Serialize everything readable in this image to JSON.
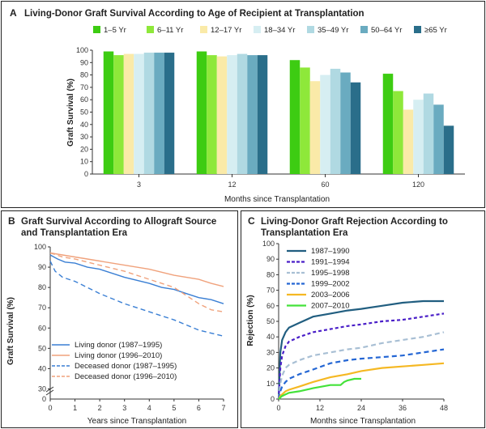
{
  "panel_a": {
    "letter": "A",
    "title": "Living-Donor Graft Survival According to Age of Recipient at Transplantation"
  },
  "panel_b": {
    "letter": "B",
    "title_line1": "Graft Survival According to Allograft Source",
    "title_line2": "and Transplantation Era"
  },
  "panel_c": {
    "letter": "C",
    "title_line1": "Living-Donor Graft Rejection According to",
    "title_line2": "Transplantation Era"
  },
  "colors": {
    "a": [
      "#3dcc12",
      "#8ee83a",
      "#faeaa8",
      "#d6eef2",
      "#b0d9e2",
      "#6aabc0",
      "#2a6e8a"
    ],
    "b": [
      "#3a7fd4",
      "#f0a27c",
      "#3a7fd4",
      "#f0a27c"
    ],
    "c": [
      "#215e80",
      "#4a1fc8",
      "#a8bfd4",
      "#2466d4",
      "#f5b823",
      "#44e23a"
    ]
  },
  "chart_data": [
    {
      "type": "bar",
      "categories": [
        "3",
        "12",
        "60",
        "120"
      ],
      "series": [
        {
          "name": "1–5 Yr",
          "values": [
            99,
            99,
            92,
            81
          ]
        },
        {
          "name": "6–11 Yr",
          "values": [
            96,
            96,
            86,
            67
          ]
        },
        {
          "name": "12–17 Yr",
          "values": [
            97,
            95,
            75,
            52
          ]
        },
        {
          "name": "18–34 Yr",
          "values": [
            97,
            96,
            80,
            60
          ]
        },
        {
          "name": "35–49 Yr",
          "values": [
            98,
            97,
            85,
            65
          ]
        },
        {
          "name": "50–64 Yr",
          "values": [
            98,
            96,
            82,
            56
          ]
        },
        {
          "name": "≥65 Yr",
          "values": [
            98,
            96,
            74,
            39
          ]
        }
      ],
      "xlabel": "Months since Transplantation",
      "ylabel": "Graft Survival (%)",
      "ylim": [
        0,
        100
      ],
      "yticks": [
        0,
        10,
        20,
        30,
        40,
        50,
        60,
        70,
        80,
        90,
        100
      ],
      "grid": false,
      "legend": "top"
    },
    {
      "type": "line",
      "series": [
        {
          "name": "Living donor (1987–1995)",
          "style": "solid",
          "points": [
            [
              0,
              96
            ],
            [
              0.3,
              94
            ],
            [
              0.6,
              92.5
            ],
            [
              1,
              92
            ],
            [
              1.5,
              90
            ],
            [
              2,
              89
            ],
            [
              3,
              85
            ],
            [
              4,
              82
            ],
            [
              4.5,
              80
            ],
            [
              5,
              79
            ],
            [
              5.5,
              77
            ],
            [
              6,
              75
            ],
            [
              6.5,
              74
            ],
            [
              7,
              72
            ]
          ]
        },
        {
          "name": "Living donor (1996–2010)",
          "style": "solid",
          "points": [
            [
              0,
              97
            ],
            [
              0.5,
              96
            ],
            [
              1,
              95
            ],
            [
              2,
              93
            ],
            [
              3,
              91
            ],
            [
              4,
              89
            ],
            [
              5,
              86
            ],
            [
              6,
              84
            ],
            [
              6.5,
              82
            ],
            [
              7,
              80.5
            ]
          ]
        },
        {
          "name": "Deceased donor (1987–1995)",
          "style": "dashed",
          "points": [
            [
              0,
              93
            ],
            [
              0.2,
              88
            ],
            [
              0.5,
              85
            ],
            [
              1,
              83
            ],
            [
              2,
              77
            ],
            [
              3,
              72
            ],
            [
              4,
              68
            ],
            [
              5,
              64
            ],
            [
              6,
              59
            ],
            [
              7,
              56
            ]
          ]
        },
        {
          "name": "Deceased donor (1996–2010)",
          "style": "dashed",
          "points": [
            [
              0,
              97
            ],
            [
              0.5,
              95
            ],
            [
              1,
              94
            ],
            [
              2,
              91
            ],
            [
              3,
              88
            ],
            [
              4,
              84
            ],
            [
              5,
              80
            ],
            [
              6,
              72
            ],
            [
              6.5,
              69
            ],
            [
              7,
              68
            ]
          ]
        }
      ],
      "xlabel": "Years since Transplantation",
      "ylabel": "Graft Survival (%)",
      "xlim": [
        0,
        7
      ],
      "ylim": [
        25,
        100
      ],
      "xticks": [
        0,
        1,
        2,
        3,
        4,
        5,
        6,
        7
      ],
      "yticks": [
        30,
        40,
        50,
        60,
        70,
        80,
        90,
        100
      ],
      "ytick_break": "0",
      "grid": false,
      "legend": "bottom-left"
    },
    {
      "type": "line",
      "series": [
        {
          "name": "1987–1990",
          "style": "solid",
          "points": [
            [
              0,
              0
            ],
            [
              0.5,
              30
            ],
            [
              1,
              38
            ],
            [
              2,
              43
            ],
            [
              3,
              46
            ],
            [
              6,
              49
            ],
            [
              10,
              53
            ],
            [
              15,
              55
            ],
            [
              20,
              57
            ],
            [
              24,
              58
            ],
            [
              30,
              60
            ],
            [
              36,
              62
            ],
            [
              42,
              63
            ],
            [
              48,
              63
            ]
          ]
        },
        {
          "name": "1991–1994",
          "style": "short-dash",
          "points": [
            [
              0,
              0
            ],
            [
              0.5,
              20
            ],
            [
              1,
              28
            ],
            [
              2,
              34
            ],
            [
              3,
              37
            ],
            [
              6,
              40
            ],
            [
              10,
              43
            ],
            [
              15,
              45
            ],
            [
              20,
              47
            ],
            [
              24,
              48
            ],
            [
              30,
              50
            ],
            [
              36,
              51
            ],
            [
              42,
              53
            ],
            [
              48,
              55
            ]
          ]
        },
        {
          "name": "1995–1998",
          "style": "dashed",
          "points": [
            [
              0,
              0
            ],
            [
              0.5,
              10
            ],
            [
              1,
              15
            ],
            [
              2,
              20
            ],
            [
              3,
              22
            ],
            [
              6,
              25
            ],
            [
              10,
              28
            ],
            [
              15,
              30
            ],
            [
              20,
              32
            ],
            [
              24,
              33
            ],
            [
              30,
              36
            ],
            [
              36,
              38
            ],
            [
              42,
              40
            ],
            [
              48,
              43
            ]
          ]
        },
        {
          "name": "1999–2002",
          "style": "dashed",
          "points": [
            [
              0,
              0
            ],
            [
              0.5,
              5
            ],
            [
              1,
              8
            ],
            [
              2,
              11
            ],
            [
              3,
              13
            ],
            [
              6,
              16
            ],
            [
              10,
              19
            ],
            [
              15,
              23
            ],
            [
              20,
              25
            ],
            [
              24,
              26
            ],
            [
              30,
              27
            ],
            [
              36,
              28
            ],
            [
              42,
              30
            ],
            [
              48,
              32
            ]
          ]
        },
        {
          "name": "2003–2006",
          "style": "solid",
          "points": [
            [
              0,
              0
            ],
            [
              0.5,
              2
            ],
            [
              1,
              3
            ],
            [
              2,
              5
            ],
            [
              3,
              6
            ],
            [
              6,
              8
            ],
            [
              10,
              11
            ],
            [
              15,
              14
            ],
            [
              20,
              16
            ],
            [
              24,
              18
            ],
            [
              30,
              20
            ],
            [
              36,
              21
            ],
            [
              42,
              22
            ],
            [
              48,
              23
            ]
          ]
        },
        {
          "name": "2007–2010",
          "style": "solid",
          "points": [
            [
              0,
              0
            ],
            [
              0.5,
              1
            ],
            [
              1,
              2
            ],
            [
              2,
              3
            ],
            [
              3,
              4
            ],
            [
              6,
              5
            ],
            [
              10,
              7
            ],
            [
              15,
              9
            ],
            [
              18,
              9
            ],
            [
              19,
              11
            ],
            [
              20,
              12
            ],
            [
              22,
              13
            ],
            [
              24,
              13
            ]
          ]
        }
      ],
      "xlabel": "Months since Transplantation",
      "ylabel": "Rejection (%)",
      "xlim": [
        0,
        48
      ],
      "ylim": [
        0,
        100
      ],
      "xticks": [
        0,
        12,
        24,
        36,
        48
      ],
      "yticks": [
        0,
        10,
        20,
        30,
        40,
        50,
        60,
        70,
        80,
        90,
        100
      ],
      "grid": false,
      "legend": "top-left"
    }
  ]
}
